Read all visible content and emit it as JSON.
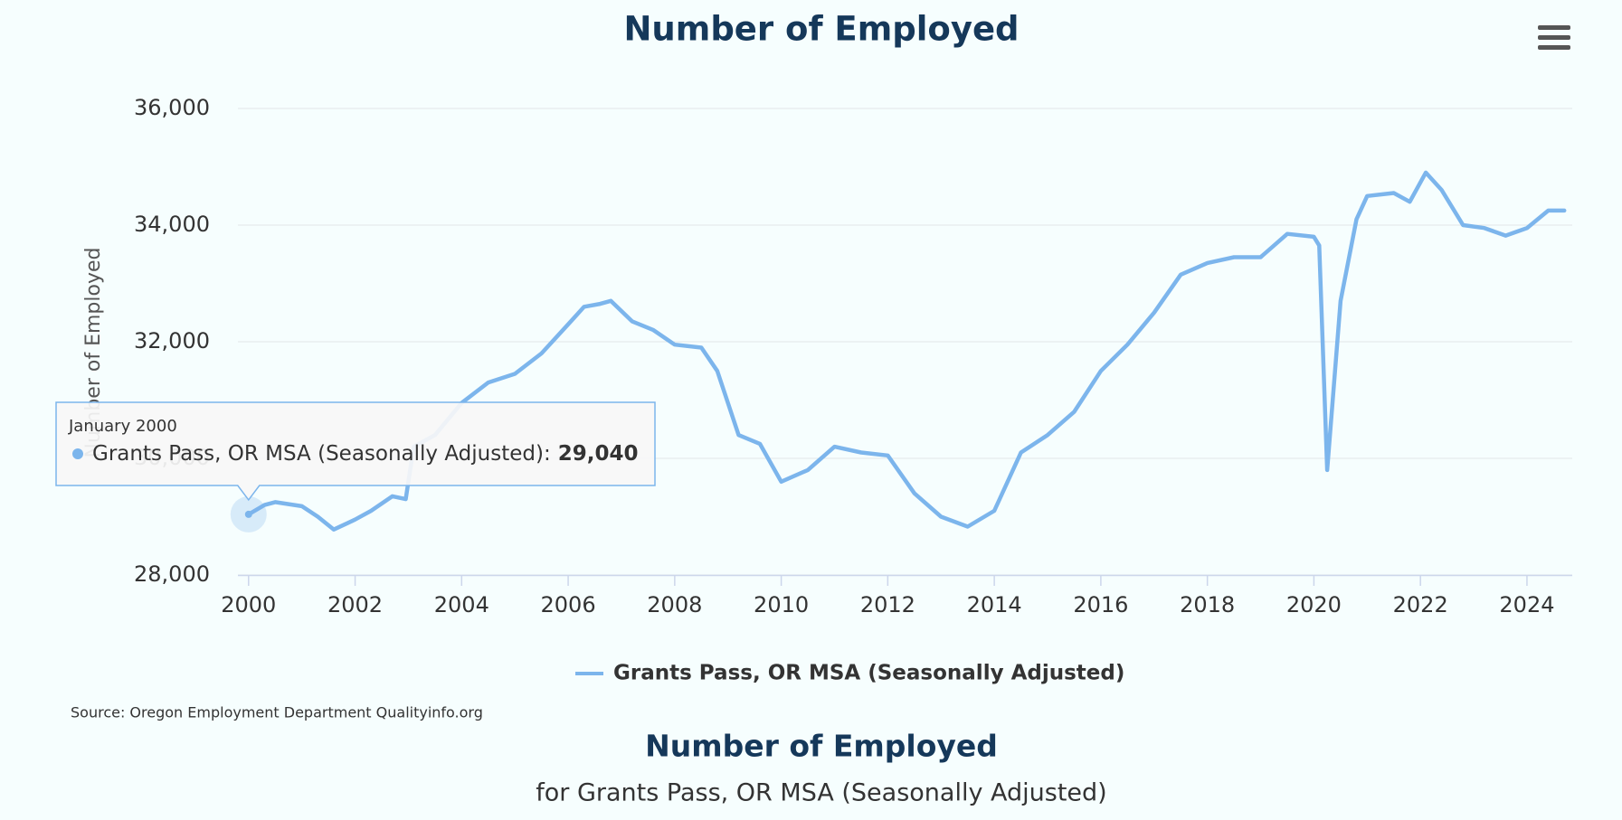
{
  "chart_data": {
    "type": "line",
    "title": "Number of Employed",
    "y_label": "Number of Employed",
    "source": "Source: Oregon Employment Department Qualityinfo.org",
    "footer_title": "Number of Employed",
    "footer_subtitle": "for Grants Pass, OR MSA (Seasonally Adjusted)",
    "xlim": [
      1999.8,
      2024.85
    ],
    "xticks": [
      2000,
      2002,
      2004,
      2006,
      2008,
      2010,
      2012,
      2014,
      2016,
      2018,
      2020,
      2022,
      2024
    ],
    "ylim": [
      28000,
      36000
    ],
    "yticks": [
      {
        "value": 28000,
        "label": "28,000"
      },
      {
        "value": 30000,
        "label": "30,000"
      },
      {
        "value": 32000,
        "label": "32,000"
      },
      {
        "value": 34000,
        "label": "34,000"
      },
      {
        "value": 36000,
        "label": "36,000"
      }
    ],
    "grid": true,
    "legend": "bottom",
    "x": [
      2000.0,
      2000.3,
      2000.5,
      2001.0,
      2001.3,
      2001.6,
      2002.0,
      2002.3,
      2002.7,
      2002.95,
      2003.1,
      2003.5,
      2004.0,
      2004.5,
      2005.0,
      2005.5,
      2006.0,
      2006.3,
      2006.6,
      2006.8,
      2007.2,
      2007.6,
      2008.0,
      2008.5,
      2008.8,
      2009.2,
      2009.6,
      2010.0,
      2010.5,
      2011.0,
      2011.5,
      2012.0,
      2012.5,
      2013.0,
      2013.5,
      2014.0,
      2014.5,
      2015.0,
      2015.5,
      2016.0,
      2016.5,
      2017.0,
      2017.5,
      2018.0,
      2018.5,
      2019.0,
      2019.5,
      2020.0,
      2020.1,
      2020.25,
      2020.5,
      2020.8,
      2021.0,
      2021.5,
      2021.8,
      2022.1,
      2022.4,
      2022.8,
      2023.2,
      2023.6,
      2024.0,
      2024.4,
      2024.7
    ],
    "series": [
      {
        "name": "Grants Pass, OR MSA (Seasonally Adjusted)",
        "color": "#7cb5ec",
        "values": [
          29040,
          29200,
          29250,
          29180,
          29000,
          28780,
          28950,
          29100,
          29350,
          29300,
          30200,
          30400,
          30950,
          31300,
          31450,
          31800,
          32300,
          32600,
          32650,
          32700,
          32350,
          32200,
          31950,
          31900,
          31500,
          30400,
          30250,
          29600,
          29800,
          30200,
          30100,
          30050,
          29400,
          29000,
          28830,
          29100,
          30100,
          30400,
          30800,
          31500,
          31950,
          32500,
          33150,
          33350,
          33450,
          33450,
          33850,
          33800,
          33650,
          29800,
          32700,
          34100,
          34500,
          34550,
          34400,
          34900,
          34600,
          34000,
          33950,
          33820,
          33950,
          34250,
          34250
        ]
      }
    ],
    "tooltip": {
      "title": "January 2000",
      "series_label": "Grants Pass, OR MSA (Seasonally Adjusted):",
      "x": 2000.0,
      "value": 29040,
      "value_label": "29,040"
    }
  }
}
